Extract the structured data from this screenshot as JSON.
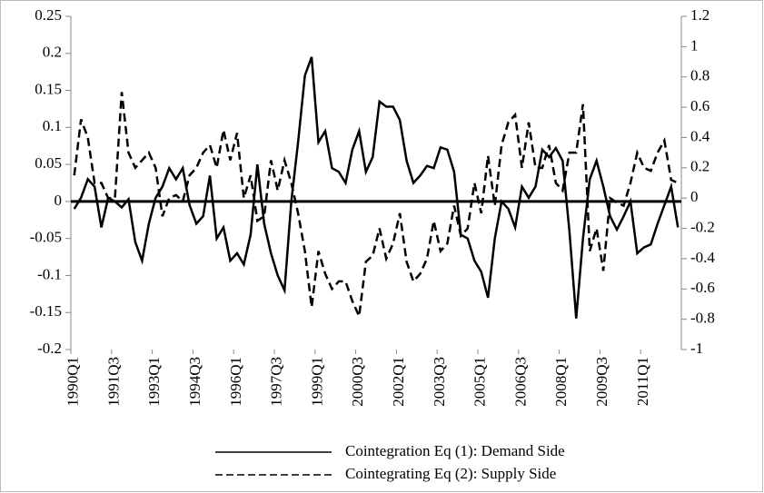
{
  "chart_data": {
    "type": "line",
    "categories": [
      "1990Q1",
      null,
      null,
      null,
      null,
      null,
      "1991Q3",
      null,
      null,
      null,
      null,
      null,
      "1993Q1",
      null,
      null,
      null,
      null,
      null,
      "1994Q3",
      null,
      null,
      null,
      null,
      null,
      "1996Q1",
      null,
      null,
      null,
      null,
      null,
      "1997Q3",
      null,
      null,
      null,
      null,
      null,
      "1999Q1",
      null,
      null,
      null,
      null,
      null,
      "2000Q3",
      null,
      null,
      null,
      null,
      null,
      "2002Q1",
      null,
      null,
      null,
      null,
      null,
      "2003Q3",
      null,
      null,
      null,
      null,
      null,
      "2005Q1",
      null,
      null,
      null,
      null,
      null,
      "2006Q3",
      null,
      null,
      null,
      null,
      null,
      "2008Q1",
      null,
      null,
      null,
      null,
      null,
      "2009Q3",
      null,
      null,
      null,
      null,
      null,
      "2011Q1",
      null,
      null,
      null,
      null,
      null
    ],
    "series": [
      {
        "name": "Cointegration Eq (1): Demand Side",
        "color": "#000000",
        "line_style": "solid",
        "values": [
          -0.01,
          0.005,
          0.03,
          0.02,
          -0.035,
          0.005,
          0.0,
          -0.008,
          0.003,
          -0.055,
          -0.08,
          -0.03,
          0.005,
          0.02,
          0.045,
          0.03,
          0.045,
          -0.005,
          -0.03,
          -0.02,
          0.035,
          -0.05,
          -0.035,
          -0.08,
          -0.07,
          -0.085,
          -0.045,
          0.05,
          -0.03,
          -0.07,
          -0.1,
          -0.12,
          0.0,
          0.08,
          0.17,
          0.195,
          0.08,
          0.095,
          0.045,
          0.04,
          0.025,
          0.07,
          0.095,
          0.04,
          0.06,
          0.135,
          0.128,
          0.128,
          0.11,
          0.055,
          0.025,
          0.035,
          0.048,
          0.045,
          0.073,
          0.07,
          0.04,
          -0.045,
          -0.05,
          -0.08,
          -0.095,
          -0.13,
          -0.05,
          0.0,
          -0.01,
          -0.035,
          0.02,
          0.005,
          0.02,
          0.07,
          0.06,
          0.072,
          0.055,
          -0.04,
          -0.158,
          -0.05,
          0.03,
          0.055,
          0.02,
          -0.02,
          -0.038,
          -0.02,
          0.0,
          -0.07,
          -0.062,
          -0.058,
          -0.03,
          -0.005,
          0.02,
          -0.035
        ]
      },
      {
        "name": "Cointegrating Eq (2): Supply Side",
        "color": "#000000",
        "line_style": "dashed",
        "axis": "y2",
        "values": [
          0.15,
          0.52,
          0.4,
          0.1,
          0.1,
          0.0,
          0.0,
          0.7,
          0.3,
          0.2,
          0.25,
          0.3,
          0.2,
          -0.12,
          0.0,
          0.02,
          -0.02,
          0.15,
          0.2,
          0.3,
          0.35,
          0.2,
          0.45,
          0.25,
          0.43,
          0.0,
          0.15,
          -0.15,
          -0.12,
          0.25,
          0.05,
          0.25,
          0.1,
          -0.1,
          -0.35,
          -0.72,
          -0.35,
          -0.5,
          -0.6,
          -0.55,
          -0.55,
          -0.68,
          -0.78,
          -0.42,
          -0.38,
          -0.2,
          -0.4,
          -0.3,
          -0.1,
          -0.42,
          -0.55,
          -0.5,
          -0.4,
          -0.15,
          -0.35,
          -0.3,
          -0.05,
          -0.25,
          -0.2,
          0.1,
          -0.1,
          0.28,
          -0.05,
          0.35,
          0.5,
          0.55,
          0.2,
          0.5,
          0.2,
          0.2,
          0.35,
          0.1,
          0.05,
          0.3,
          0.3,
          0.62,
          -0.35,
          -0.2,
          -0.48,
          0.0,
          -0.03,
          -0.05,
          0.1,
          0.3,
          0.2,
          0.18,
          0.3,
          0.38,
          0.12,
          0.1
        ]
      }
    ],
    "ylim": [
      -0.2,
      0.25
    ],
    "yticks": [
      -0.2,
      -0.15,
      -0.1,
      -0.05,
      0,
      0.05,
      0.1,
      0.15,
      0.2,
      0.25
    ],
    "y2lim": [
      -1,
      1.2
    ],
    "y2ticks": [
      -1,
      -0.8,
      -0.6,
      -0.4,
      -0.2,
      0,
      0.2,
      0.4,
      0.6,
      0.8,
      1,
      1.2
    ],
    "legend": "bottom"
  }
}
